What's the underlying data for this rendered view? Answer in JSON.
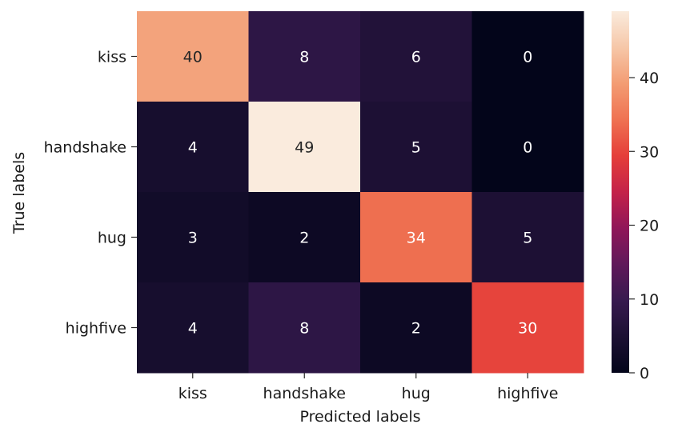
{
  "chart_data": {
    "type": "heatmap",
    "title": "",
    "xlabel": "Predicted labels",
    "ylabel": "True labels",
    "x_categories": [
      "kiss",
      "handshake",
      "hug",
      "highfive"
    ],
    "y_categories": [
      "kiss",
      "handshake",
      "hug",
      "highfive"
    ],
    "values": [
      [
        40,
        8,
        6,
        0
      ],
      [
        4,
        49,
        5,
        0
      ],
      [
        3,
        2,
        34,
        5
      ],
      [
        4,
        8,
        2,
        30
      ]
    ],
    "colorbar": {
      "range": [
        0,
        49
      ],
      "ticks": [
        0,
        10,
        20,
        30,
        40
      ],
      "colormap": "rocket"
    },
    "annotations": true,
    "grid": false
  }
}
